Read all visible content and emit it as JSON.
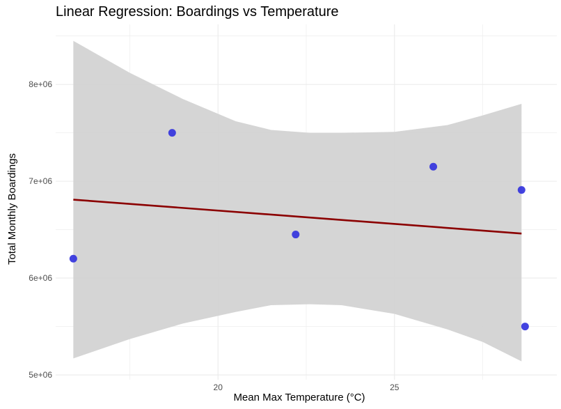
{
  "chart_data": {
    "type": "scatter",
    "title": "Linear Regression: Boardings vs Temperature",
    "xlabel": "Mean Max Temperature (°C)",
    "ylabel": "Total Monthly Boardings",
    "xlim": [
      15.4,
      29.6
    ],
    "ylim": [
      4950000,
      8620000
    ],
    "x_ticks": [
      20,
      25
    ],
    "x_tick_labels": [
      "20",
      "25"
    ],
    "y_ticks": [
      5000000,
      6000000,
      7000000,
      8000000
    ],
    "y_tick_labels": [
      "5e+06",
      "6e+06",
      "7e+06",
      "8e+06"
    ],
    "grid": true,
    "points": [
      {
        "x": 15.9,
        "y": 6200000
      },
      {
        "x": 18.7,
        "y": 7500000
      },
      {
        "x": 22.2,
        "y": 6450000
      },
      {
        "x": 26.1,
        "y": 7150000
      },
      {
        "x": 28.6,
        "y": 6910000
      },
      {
        "x": 28.7,
        "y": 5500000
      }
    ],
    "regression_line": {
      "x": [
        15.9,
        28.6
      ],
      "y": [
        6810000,
        6460000
      ]
    },
    "confidence_band": {
      "x": [
        15.9,
        17.5,
        19.0,
        20.5,
        21.5,
        22.6,
        23.5,
        25.0,
        26.5,
        27.5,
        28.6
      ],
      "upper": [
        8450000,
        8120000,
        7850000,
        7620000,
        7530000,
        7500000,
        7500000,
        7510000,
        7580000,
        7680000,
        7800000
      ],
      "lower": [
        5170000,
        5370000,
        5530000,
        5650000,
        5720000,
        5730000,
        5720000,
        5630000,
        5470000,
        5340000,
        5140000
      ]
    },
    "colors": {
      "points": "#3333dd",
      "regression": "#8b0000",
      "band": "#d3d3d3",
      "grid": "#ebebeb"
    }
  }
}
